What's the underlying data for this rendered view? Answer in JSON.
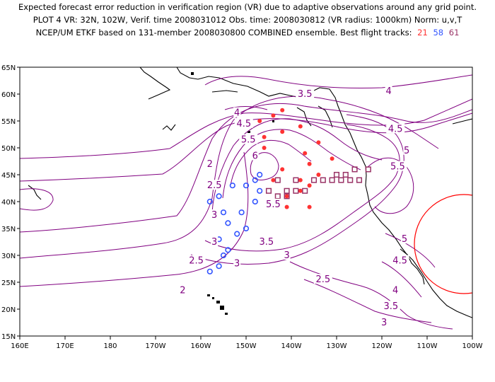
{
  "header": {
    "line1": "Expected forecast error reduction in verification region (VR) due to adaptive observations around any grid point.",
    "line2": "PLOT 4 VR: 32N, 102W, Verif. time 2008031012 Obs. time: 2008030812 (VR radius: 1000km) Norm: u,v,T",
    "line3": "NCEP/UM ETKF based on 131-member 2008030800 COMBINED ensemble.  Best flight tracks:",
    "tracks": [
      {
        "label": "21",
        "color": "#ff3333"
      },
      {
        "label": "58",
        "color": "#3355ff"
      },
      {
        "label": "61",
        "color": "#993366"
      }
    ]
  },
  "axes": {
    "lon_labels": [
      "160E",
      "170E",
      "180",
      "170W",
      "160W",
      "150W",
      "140W",
      "130W",
      "120W",
      "110W",
      "100W"
    ],
    "lat_labels": [
      "15N",
      "20N",
      "25N",
      "30N",
      "35N",
      "40N",
      "45N",
      "50N",
      "55N",
      "60N",
      "65N"
    ]
  },
  "contour_labels": [
    {
      "text": "2",
      "lon": -158,
      "lat": 47
    },
    {
      "text": "2.5",
      "lon": -157,
      "lat": 43
    },
    {
      "text": "3",
      "lon": -157,
      "lat": 37.5
    },
    {
      "text": "3",
      "lon": -157,
      "lat": 32.5
    },
    {
      "text": "2.5",
      "lon": -161,
      "lat": 29
    },
    {
      "text": "2",
      "lon": -164,
      "lat": 23.5
    },
    {
      "text": "3.5",
      "lon": -145.5,
      "lat": 32.5
    },
    {
      "text": "3",
      "lon": -141,
      "lat": 30
    },
    {
      "text": "3",
      "lon": -152,
      "lat": 28.5
    },
    {
      "text": "2.5",
      "lon": -133,
      "lat": 25.5
    },
    {
      "text": "3.5",
      "lon": -137,
      "lat": 60
    },
    {
      "text": "4",
      "lon": -152,
      "lat": 56.5
    },
    {
      "text": "4.5",
      "lon": -150.5,
      "lat": 54.5
    },
    {
      "text": "5.5",
      "lon": -149.5,
      "lat": 51.5
    },
    {
      "text": "6",
      "lon": -148,
      "lat": 48.5
    },
    {
      "text": "5.5",
      "lon": -144,
      "lat": 39.5
    },
    {
      "text": "4",
      "lon": -118.5,
      "lat": 60.5
    },
    {
      "text": "4.5",
      "lon": -117,
      "lat": 53.5
    },
    {
      "text": "5",
      "lon": -114.5,
      "lat": 49.5
    },
    {
      "text": "5.5",
      "lon": -116.5,
      "lat": 46.5
    },
    {
      "text": "5",
      "lon": -115,
      "lat": 33
    },
    {
      "text": "4.5",
      "lon": -116,
      "lat": 29
    },
    {
      "text": "4",
      "lon": -117,
      "lat": 23.5
    },
    {
      "text": "3.5",
      "lon": -118,
      "lat": 20.5
    },
    {
      "text": "3",
      "lon": -119.5,
      "lat": 17.5
    }
  ],
  "tracks": {
    "21": [
      [
        -142,
        57
      ],
      [
        -144,
        56
      ],
      [
        -147,
        55
      ],
      [
        -138,
        54
      ],
      [
        -142,
        53
      ],
      [
        -146,
        52
      ],
      [
        -134,
        51
      ],
      [
        -146,
        50
      ],
      [
        -137,
        49
      ],
      [
        -131,
        48
      ],
      [
        -136,
        47
      ],
      [
        -142,
        46
      ],
      [
        -134,
        45
      ],
      [
        -138,
        44
      ],
      [
        -144,
        44
      ],
      [
        -136,
        43
      ],
      [
        -138,
        42
      ],
      [
        -141,
        41
      ],
      [
        -143,
        40
      ],
      [
        -141,
        39
      ],
      [
        -136,
        39
      ]
    ],
    "58": [
      [
        -147,
        45
      ],
      [
        -148,
        44
      ],
      [
        -150,
        43
      ],
      [
        -153,
        43
      ],
      [
        -157,
        43
      ],
      [
        -147,
        42
      ],
      [
        -156,
        41
      ],
      [
        -158,
        40
      ],
      [
        -148,
        40
      ],
      [
        -151,
        38
      ],
      [
        -155,
        38
      ],
      [
        -154,
        36
      ],
      [
        -150,
        35
      ],
      [
        -152,
        34
      ],
      [
        -156,
        33
      ],
      [
        -154,
        31
      ],
      [
        -155,
        30
      ],
      [
        -156,
        28
      ],
      [
        -158,
        27
      ]
    ],
    "61": [
      [
        -123,
        46
      ],
      [
        -126,
        46
      ],
      [
        -128,
        45
      ],
      [
        -130,
        45
      ],
      [
        -131,
        44
      ],
      [
        -125,
        44
      ],
      [
        -127,
        44
      ],
      [
        -129,
        44
      ],
      [
        -133,
        44
      ],
      [
        -135,
        44
      ],
      [
        -139,
        44
      ],
      [
        -143,
        44
      ],
      [
        -141,
        42
      ],
      [
        -139,
        42
      ],
      [
        -137,
        42
      ],
      [
        -145,
        42
      ],
      [
        -143,
        41
      ],
      [
        -141,
        41
      ]
    ]
  },
  "verification_region": {
    "lat": 32,
    "lon": -102,
    "radius_km": 1000
  }
}
